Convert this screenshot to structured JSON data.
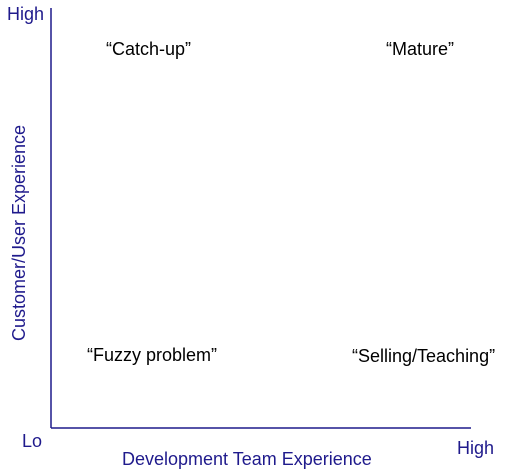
{
  "axes": {
    "y_title": "Customer/User Experience",
    "x_title": "Development Team Experience",
    "y_high": "High",
    "x_high": "High",
    "origin": "Lo"
  },
  "quadrants": {
    "top_left": "“Catch-up”",
    "top_right": "“Mature”",
    "bottom_left": "“Fuzzy problem”",
    "bottom_right": "“Selling/Teaching”"
  },
  "colors": {
    "axis": "#1f1a8c",
    "quadrant_text": "#000000"
  }
}
